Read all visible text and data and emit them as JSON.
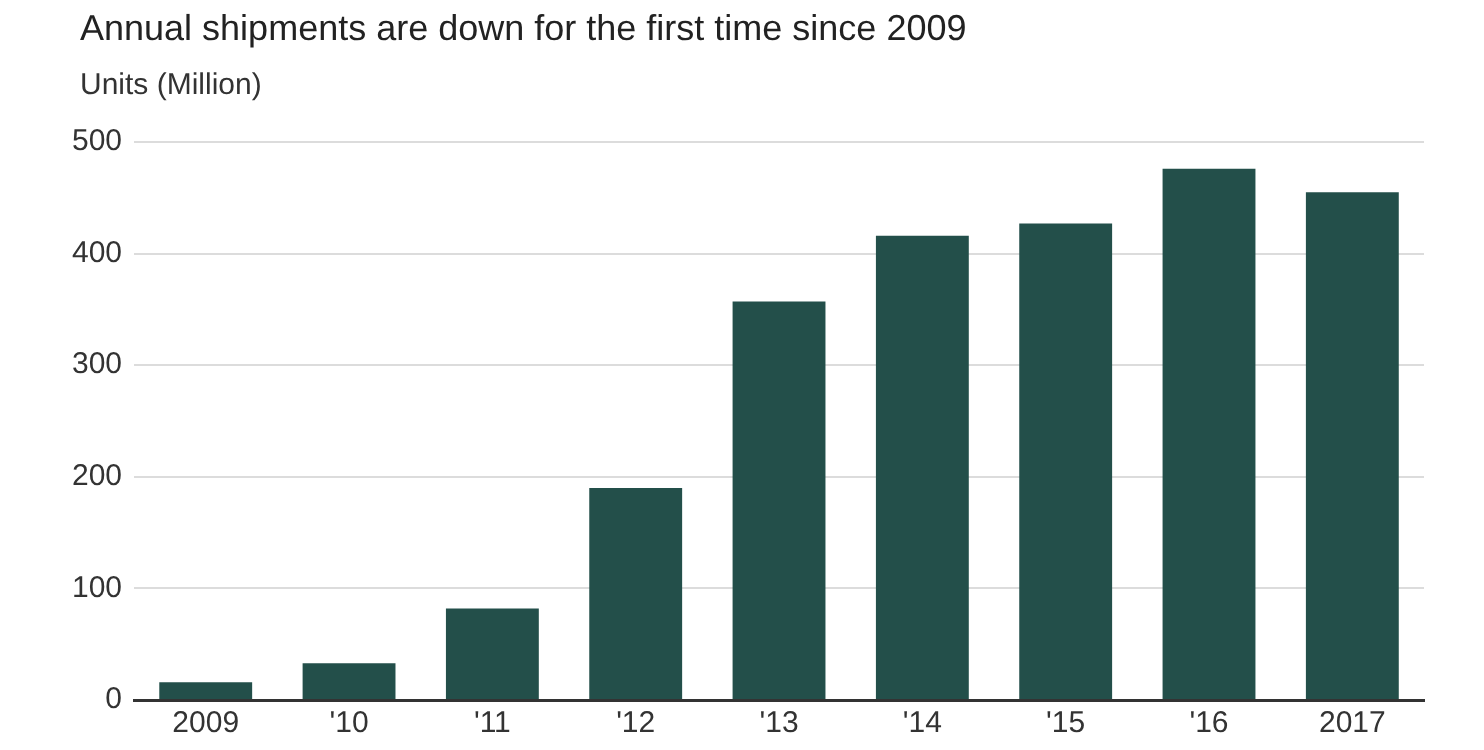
{
  "chart_data": {
    "type": "bar",
    "title": "Annual shipments are down for the first time since 2009",
    "ylabel": "Units (Million)",
    "categories": [
      "2009",
      "'10",
      "'11",
      "'12",
      "'13",
      "'14",
      "'15",
      "'16",
      "2017"
    ],
    "values": [
      16,
      33,
      82,
      190,
      357,
      416,
      427,
      476,
      455
    ],
    "color": "#234f4a",
    "ylim": [
      0,
      500
    ],
    "yticks": [
      0,
      100,
      200,
      300,
      400,
      500
    ],
    "grid": "y",
    "legend": false
  }
}
